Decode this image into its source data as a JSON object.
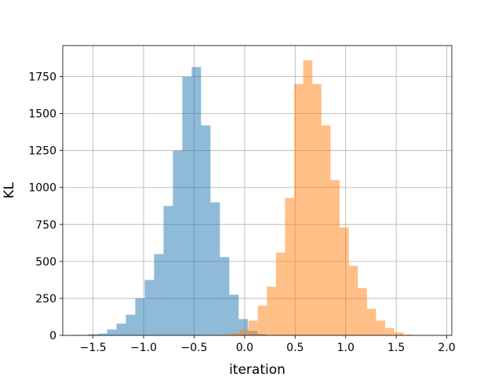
{
  "chart_data": {
    "type": "bar",
    "title": "",
    "xlabel": "iteration",
    "ylabel": "KL",
    "xlim": [
      -1.8,
      2.05
    ],
    "ylim": [
      0,
      1960
    ],
    "grid": true,
    "xticks": [
      -1.5,
      -1.0,
      -0.5,
      0.0,
      0.5,
      1.0,
      1.5,
      2.0
    ],
    "xtick_labels": [
      "−1.5",
      "−1.0",
      "−0.5",
      "0.0",
      "0.5",
      "1.0",
      "1.5",
      "2.0"
    ],
    "yticks": [
      0,
      250,
      500,
      750,
      1000,
      1250,
      1500,
      1750
    ],
    "ytick_labels": [
      "0",
      "250",
      "500",
      "750",
      "1000",
      "1250",
      "1500",
      "1750"
    ],
    "series": [
      {
        "color": "#1f77b4",
        "opacity": 0.5,
        "bin_edges": [
          -1.733,
          -1.64,
          -1.547,
          -1.454,
          -1.361,
          -1.268,
          -1.175,
          -1.082,
          -0.989,
          -0.896,
          -0.803,
          -0.71,
          -0.617,
          -0.524,
          -0.431,
          -0.338,
          -0.245,
          -0.152,
          -0.059,
          0.034,
          0.127,
          0.22
        ],
        "counts": [
          2,
          3,
          8,
          12,
          40,
          80,
          140,
          250,
          375,
          550,
          875,
          1250,
          1750,
          1815,
          1420,
          900,
          530,
          275,
          110,
          30,
          8
        ]
      },
      {
        "color": "#ff7f0e",
        "opacity": 0.5,
        "bin_edges": [
          -0.23,
          -0.14,
          -0.05,
          0.04,
          0.13,
          0.22,
          0.31,
          0.4,
          0.49,
          0.58,
          0.67,
          0.76,
          0.85,
          0.94,
          1.03,
          1.12,
          1.21,
          1.3,
          1.39,
          1.48,
          1.57,
          1.66
        ],
        "counts": [
          5,
          15,
          40,
          100,
          200,
          330,
          560,
          930,
          1700,
          1860,
          1700,
          1420,
          1050,
          730,
          470,
          320,
          180,
          100,
          50,
          20,
          5
        ]
      }
    ]
  }
}
